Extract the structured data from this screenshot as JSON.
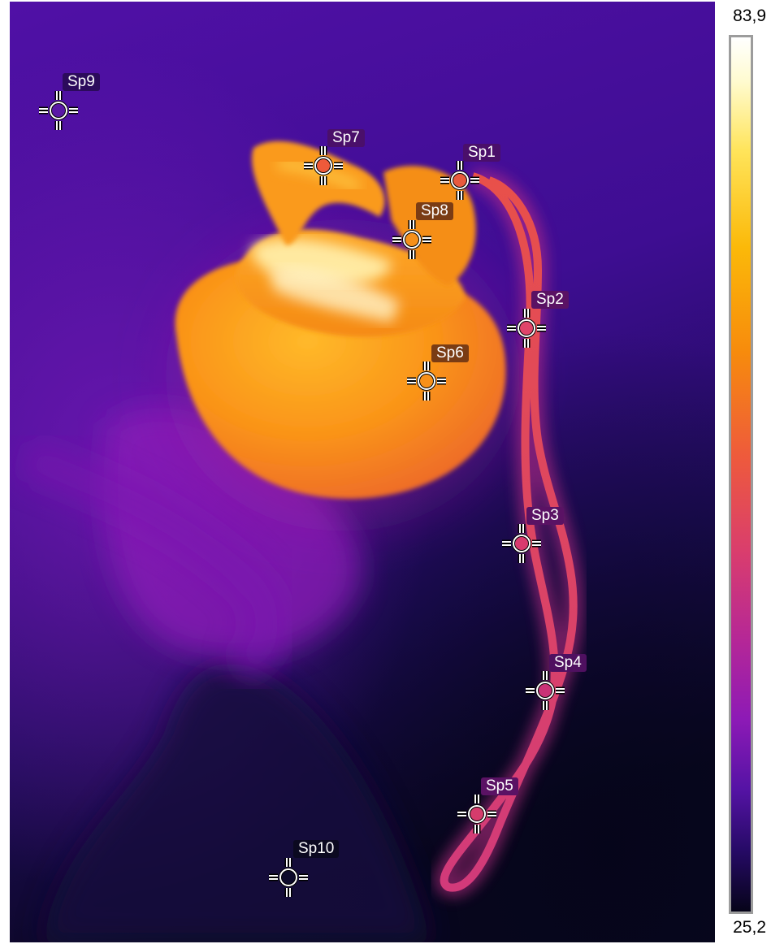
{
  "scale": {
    "max": "83,9",
    "min": "25,2"
  },
  "spots": [
    {
      "id": "Sp1",
      "name": "spot-sp1",
      "fill": "#e85a3e",
      "label_bg": "#4a0f6a"
    },
    {
      "id": "Sp2",
      "name": "spot-sp2",
      "fill": "#e0456a",
      "label_bg": "#5a1264"
    },
    {
      "id": "Sp3",
      "name": "spot-sp3",
      "fill": "#d93a6e",
      "label_bg": "#5a1264"
    },
    {
      "id": "Sp4",
      "name": "spot-sp4",
      "fill": "#c93276",
      "label_bg": "#4f1060"
    },
    {
      "id": "Sp5",
      "name": "spot-sp5",
      "fill": "#d63c6c",
      "label_bg": "#5a1264"
    },
    {
      "id": "Sp6",
      "name": "spot-sp6",
      "fill": "#f79019",
      "label_bg": "#7a3c14"
    },
    {
      "id": "Sp7",
      "name": "spot-sp7",
      "fill": "#ee5a3a",
      "label_bg": "#4a0f6a"
    },
    {
      "id": "Sp8",
      "name": "spot-sp8",
      "fill": "#f6901a",
      "label_bg": "#7a3c14"
    },
    {
      "id": "Sp9",
      "name": "spot-sp9",
      "fill": "#5a18a6",
      "label_bg": "#2c0b5c"
    },
    {
      "id": "Sp10",
      "name": "spot-sp10",
      "fill": "#0d0a2a",
      "label_bg": "#0b0920"
    }
  ]
}
